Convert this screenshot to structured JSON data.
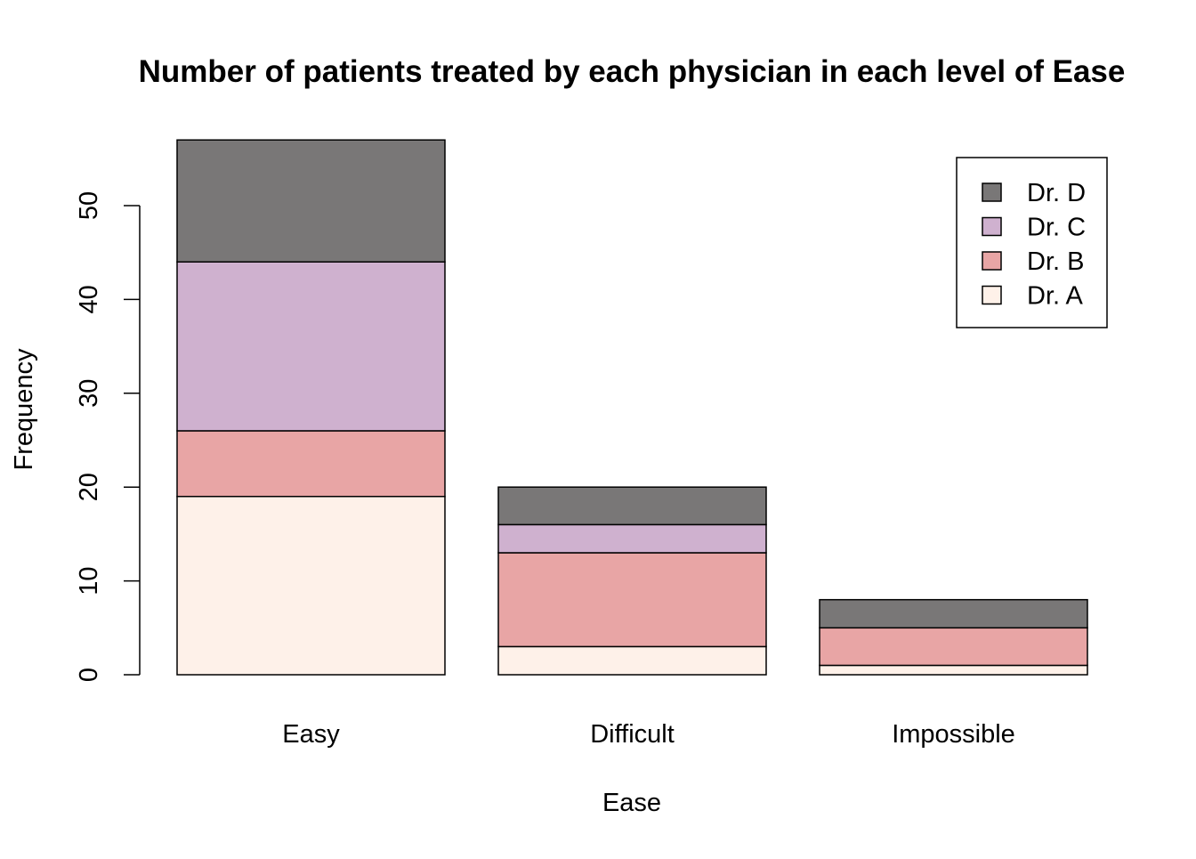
{
  "chart_data": {
    "type": "bar",
    "stacked": true,
    "title": "Number of patients treated by each physician in each level of Ease",
    "xlabel": "Ease",
    "ylabel": "Frequency",
    "categories": [
      "Easy",
      "Difficult",
      "Impossible"
    ],
    "series": [
      {
        "name": "Dr. A",
        "color": "#FEF1E9",
        "values": [
          19,
          3,
          1
        ]
      },
      {
        "name": "Dr. B",
        "color": "#E8A5A5",
        "values": [
          7,
          10,
          4
        ]
      },
      {
        "name": "Dr. C",
        "color": "#CFB1CF",
        "values": [
          18,
          3,
          0
        ]
      },
      {
        "name": "Dr. D",
        "color": "#797777",
        "values": [
          13,
          4,
          3
        ]
      }
    ],
    "yticks": [
      0,
      10,
      20,
      30,
      40,
      50
    ],
    "ylim": [
      0,
      57
    ],
    "grid": false,
    "legend": {
      "position": "top-right",
      "order": [
        "Dr. D",
        "Dr. C",
        "Dr. B",
        "Dr. A"
      ]
    }
  }
}
